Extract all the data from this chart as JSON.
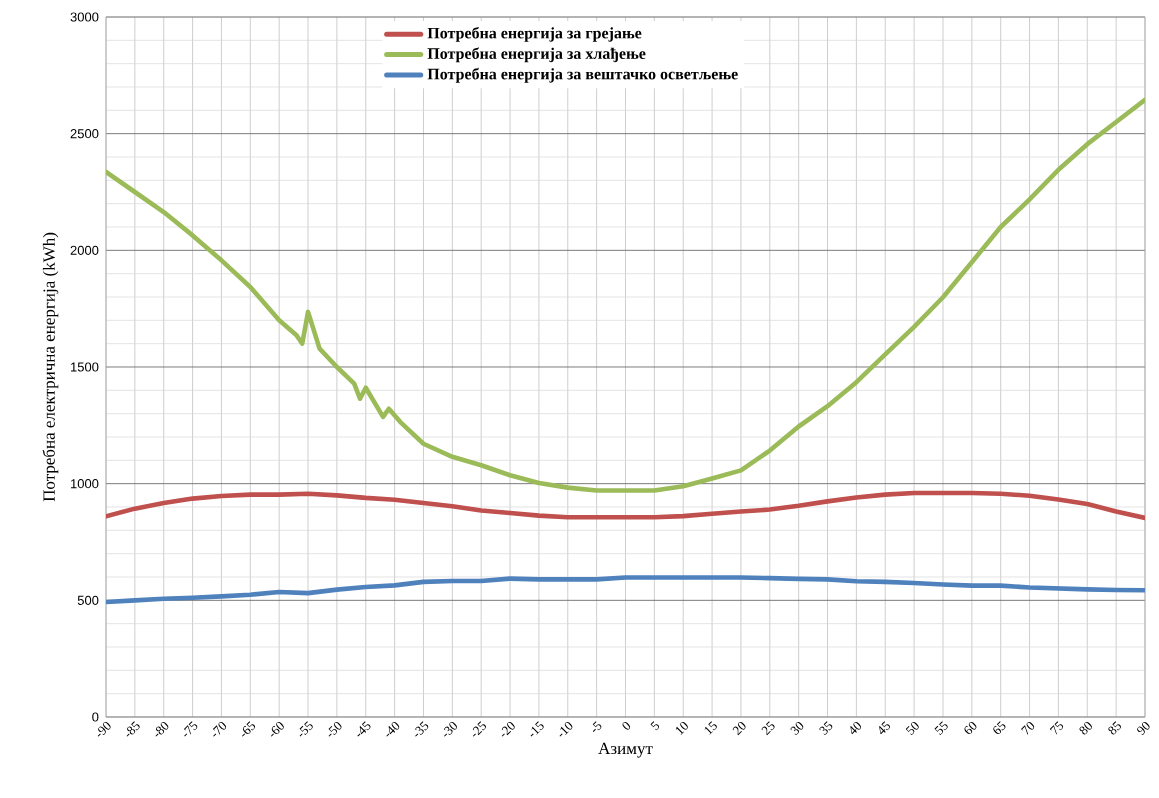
{
  "chart_data": {
    "type": "line",
    "xlabel": "Азимут",
    "ylabel": "Потребна електрична енергија (kWh)",
    "x": [
      -90,
      -85,
      -80,
      -75,
      -70,
      -65,
      -60,
      -55,
      -50,
      -45,
      -40,
      -35,
      -30,
      -25,
      -20,
      -15,
      -10,
      -5,
      0,
      5,
      10,
      15,
      20,
      25,
      30,
      35,
      40,
      45,
      50,
      55,
      60,
      65,
      70,
      75,
      80,
      85,
      90
    ],
    "series": [
      {
        "name": "Потребна енергија за грејање",
        "color": "#c0504d",
        "values": [
          860,
          893,
          917,
          936,
          947,
          953,
          953,
          957,
          950,
          939,
          931,
          917,
          903,
          885,
          874,
          863,
          856,
          856,
          856,
          856,
          861,
          871,
          881,
          889,
          905,
          924,
          941,
          953,
          960,
          960,
          960,
          957,
          948,
          932,
          913,
          881,
          853
        ]
      },
      {
        "name": "Потребна енергија за хлађење",
        "color": "#9bbb59",
        "x": [
          -90,
          -85,
          -80,
          -75,
          -70,
          -65,
          -60,
          -57,
          -56,
          -55,
          -53,
          -50,
          -47,
          -46,
          -45,
          -42,
          -41,
          -39,
          -35,
          -30,
          -25,
          -20,
          -15,
          -10,
          -5,
          0,
          5,
          10,
          15,
          20,
          25,
          30,
          35,
          40,
          45,
          50,
          55,
          60,
          65,
          70,
          75,
          80,
          85,
          90
        ],
        "values": [
          2336,
          2250,
          2164,
          2064,
          1957,
          1843,
          1700,
          1636,
          1600,
          1736,
          1579,
          1500,
          1429,
          1364,
          1411,
          1286,
          1321,
          1264,
          1171,
          1115,
          1079,
          1036,
          1003,
          983,
          971,
          971,
          971,
          989,
          1022,
          1057,
          1142,
          1245,
          1332,
          1435,
          1554,
          1672,
          1799,
          1949,
          2100,
          2218,
          2345,
          2455,
          2550,
          2645
        ]
      },
      {
        "name": "Потребна енергија за вештачко осветљење",
        "color": "#4f81bd",
        "values": [
          493,
          500,
          507,
          511,
          517,
          524,
          536,
          531,
          546,
          557,
          564,
          579,
          583,
          583,
          593,
          590,
          590,
          590,
          598,
          598,
          598,
          598,
          598,
          595,
          592,
          590,
          582,
          579,
          574,
          568,
          563,
          563,
          555,
          551,
          547,
          544,
          543
        ]
      }
    ],
    "xlim": [
      -90,
      90
    ],
    "ylim": [
      0,
      3000
    ],
    "xticks": [
      -90,
      -85,
      -80,
      -75,
      -70,
      -65,
      -60,
      -55,
      -50,
      -45,
      -40,
      -35,
      -30,
      -25,
      -20,
      -15,
      -10,
      -5,
      0,
      5,
      10,
      15,
      20,
      25,
      30,
      35,
      40,
      45,
      50,
      55,
      60,
      65,
      70,
      75,
      80,
      85,
      90
    ],
    "yticks": [
      0,
      500,
      1000,
      1500,
      2000,
      2500,
      3000
    ],
    "grid": true,
    "legend": "top",
    "marker": "none",
    "line_style": "solid"
  }
}
